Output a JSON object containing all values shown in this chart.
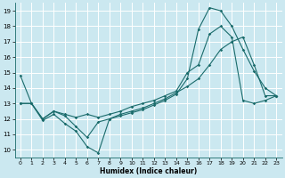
{
  "xlabel": "Humidex (Indice chaleur)",
  "bg_color": "#cbe8f0",
  "grid_color": "#ffffff",
  "line_color": "#1a6b6b",
  "xlim": [
    -0.5,
    23.5
  ],
  "ylim": [
    9.5,
    19.5
  ],
  "xticks": [
    0,
    1,
    2,
    3,
    4,
    5,
    6,
    7,
    8,
    9,
    10,
    11,
    12,
    13,
    14,
    15,
    16,
    17,
    18,
    19,
    20,
    21,
    22,
    23
  ],
  "yticks": [
    10,
    11,
    12,
    13,
    14,
    15,
    16,
    17,
    18,
    19
  ],
  "line1_x": [
    0,
    1,
    2,
    3,
    4,
    5,
    6,
    7,
    8,
    9,
    10,
    11,
    12,
    13,
    14,
    15,
    16,
    17,
    18,
    19,
    20,
    21,
    22,
    23
  ],
  "line1_y": [
    14.8,
    13.0,
    11.9,
    12.3,
    11.7,
    11.2,
    10.2,
    9.8,
    12.0,
    12.2,
    12.4,
    12.6,
    12.9,
    13.2,
    13.6,
    14.6,
    17.8,
    19.2,
    19.0,
    18.0,
    16.5,
    15.1,
    14.0,
    13.5
  ],
  "line2_x": [
    0,
    1,
    2,
    3,
    4,
    5,
    6,
    7,
    8,
    9,
    10,
    11,
    12,
    13,
    14,
    15,
    16,
    17,
    18,
    19,
    20,
    21,
    22,
    23
  ],
  "line2_y": [
    13.0,
    13.0,
    12.0,
    12.5,
    12.3,
    12.1,
    12.3,
    12.1,
    12.3,
    12.5,
    12.8,
    13.0,
    13.2,
    13.5,
    13.8,
    15.0,
    15.5,
    17.5,
    18.0,
    17.3,
    13.2,
    13.0,
    13.2,
    13.5
  ],
  "line3_x": [
    0,
    1,
    2,
    3,
    4,
    5,
    6,
    7,
    8,
    9,
    10,
    11,
    12,
    13,
    14,
    15,
    16,
    17,
    18,
    19,
    20,
    21,
    22,
    23
  ],
  "line3_y": [
    13.0,
    13.0,
    12.0,
    12.5,
    12.2,
    11.5,
    10.8,
    11.8,
    12.0,
    12.3,
    12.5,
    12.7,
    13.0,
    13.3,
    13.7,
    14.1,
    14.6,
    15.5,
    16.5,
    17.0,
    17.3,
    15.5,
    13.5,
    13.5
  ]
}
